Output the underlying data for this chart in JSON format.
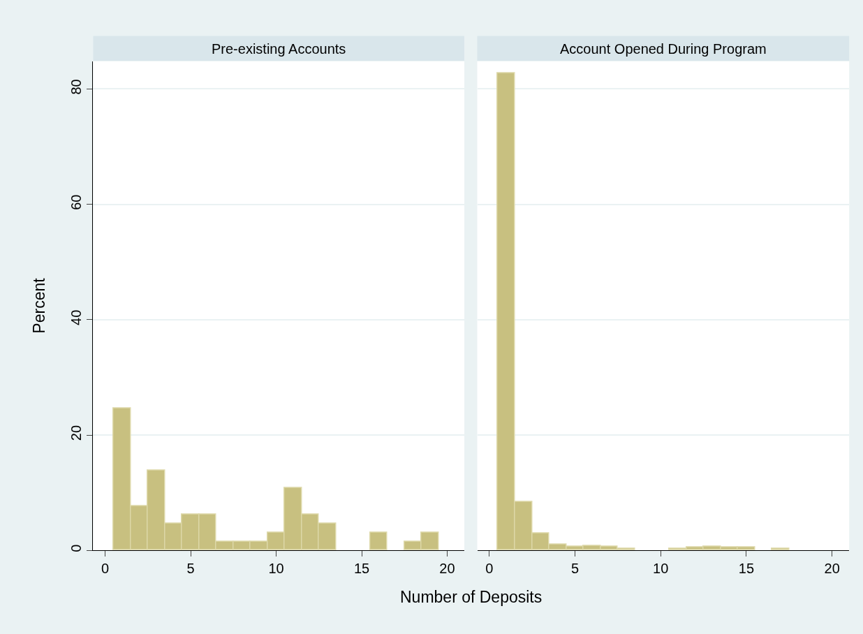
{
  "chart_data": [
    {
      "type": "histogram",
      "title": "Pre-existing Accounts",
      "xlabel": "Number of Deposits",
      "ylabel": "Percent",
      "color": "#c8c080",
      "bins": [
        0.5,
        1.5,
        2.5,
        3.5,
        4.5,
        5.5,
        6.5,
        7.5,
        8.5,
        9.5,
        10.5,
        11.5,
        12.5,
        13.5,
        14.5,
        15.5,
        16.5,
        17.5,
        18.5,
        19.5
      ],
      "values": [
        24.6,
        7.7,
        13.8,
        4.6,
        6.2,
        6.2,
        1.5,
        1.5,
        1.5,
        3.1,
        10.8,
        6.2,
        4.6,
        0,
        0,
        3.1,
        0,
        1.5,
        3.1
      ],
      "xlim": [
        -0.7,
        21
      ],
      "xticks": [
        0,
        5,
        10,
        15,
        20
      ],
      "ylim": [
        0,
        84.8
      ],
      "yticks": [
        0,
        20,
        40,
        60,
        80
      ],
      "grid": "y"
    },
    {
      "type": "histogram",
      "title": "Account Opened During Program",
      "color": "#c8c080",
      "bins": [
        0.5,
        1.5,
        2.5,
        3.5,
        4.5,
        5.5,
        6.5,
        7.5,
        8.5,
        9.5,
        10.5,
        11.5,
        12.5,
        13.5,
        14.5,
        15.5,
        16.5,
        17.5,
        18.5,
        19.5
      ],
      "values": [
        82.8,
        8.4,
        3.0,
        1.0,
        0.7,
        0.8,
        0.7,
        0.3,
        0,
        0,
        0.3,
        0.5,
        0.7,
        0.5,
        0.5,
        0,
        0.3,
        0,
        0
      ],
      "xlim": [
        -0.7,
        21
      ],
      "xticks": [
        0,
        5,
        10,
        15,
        20
      ],
      "ylim": [
        0,
        84.8
      ],
      "yticks": [
        0,
        20,
        40,
        60,
        80
      ],
      "grid": "y",
      "tick_labels": "x"
    }
  ]
}
